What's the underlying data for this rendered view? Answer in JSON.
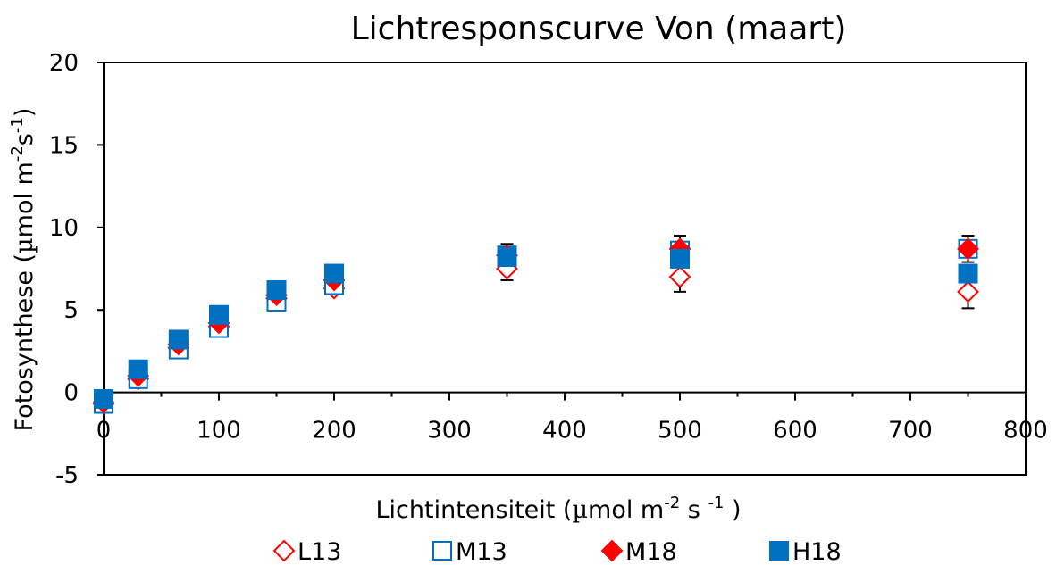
{
  "chart_data": {
    "type": "scatter",
    "title": "Lichtresponscurve Von (maart)",
    "xlabel": {
      "pre": "Lichtintensiteit (",
      "mu": "µ",
      "mid": "mol m",
      "sup1": "-2",
      "mid2": " s ",
      "sup2": "-1",
      "post": " )"
    },
    "ylabel": {
      "pre": "Fotosynthese (",
      "mu": "µ",
      "mid": "mol m",
      "sup1": "-2",
      "mid2": "s",
      "sup2": "-1",
      "post": ")"
    },
    "xlim": [
      0,
      800
    ],
    "ylim": [
      -5,
      20
    ],
    "xticks": [
      0,
      100,
      200,
      300,
      400,
      500,
      600,
      700,
      800
    ],
    "yticks": [
      -5,
      0,
      5,
      10,
      15,
      20
    ],
    "grid": false,
    "legend_position": "bottom",
    "series": [
      {
        "name": "L13",
        "marker": "diamond-open",
        "color": "#FF0000",
        "x": [
          0,
          30,
          65,
          100,
          150,
          200,
          350,
          500,
          750
        ],
        "y": [
          -0.7,
          0.8,
          2.7,
          4.0,
          5.7,
          6.3,
          7.5,
          7.0,
          6.1
        ],
        "err": [
          0.2,
          0.2,
          0.2,
          0.2,
          0.2,
          0.3,
          0.7,
          0.9,
          1.0
        ]
      },
      {
        "name": "M13",
        "marker": "square-open",
        "color": "#0070C0",
        "x": [
          0,
          30,
          65,
          100,
          150,
          200,
          350,
          500,
          750
        ],
        "y": [
          -0.7,
          0.8,
          2.6,
          3.9,
          5.5,
          6.5,
          8.3,
          8.6,
          8.7
        ],
        "err": [
          0.2,
          0.2,
          0.2,
          0.2,
          0.3,
          0.4,
          0.5,
          0.5,
          0.4
        ]
      },
      {
        "name": "M18",
        "marker": "diamond-filled",
        "color": "#FF0000",
        "x": [
          0,
          30,
          65,
          100,
          150,
          200,
          350,
          500,
          750
        ],
        "y": [
          -0.6,
          1.0,
          2.9,
          4.2,
          5.9,
          6.8,
          8.3,
          8.7,
          8.7
        ],
        "err": [
          0.2,
          0.2,
          0.2,
          0.2,
          0.3,
          0.4,
          0.7,
          0.8,
          0.8
        ]
      },
      {
        "name": "H18",
        "marker": "square-filled",
        "color": "#0070C0",
        "x": [
          0,
          30,
          65,
          100,
          150,
          200,
          350,
          500,
          750
        ],
        "y": [
          -0.4,
          1.4,
          3.2,
          4.7,
          6.2,
          7.2,
          8.2,
          8.1,
          7.2
        ],
        "err": [
          0.2,
          0.2,
          0.2,
          0.2,
          0.3,
          0.5,
          0.6,
          0.5,
          0.4
        ]
      }
    ]
  }
}
